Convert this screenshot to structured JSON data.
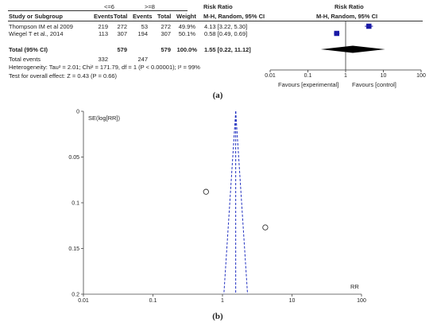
{
  "forest": {
    "group1_label": "<=6",
    "group2_label": ">=8",
    "rr_header_left": "Risk Ratio",
    "rr_header_right": "Risk Ratio",
    "columns": {
      "study": "Study or Subgroup",
      "events1": "Events",
      "total1": "Total",
      "events2": "Events",
      "total2": "Total",
      "weight": "Weight",
      "method_left": "M-H, Random, 95% CI",
      "method_right": "M-H, Random, 95% CI"
    },
    "studies": [
      {
        "name": "Thompson IM et al 2009",
        "events1": "219",
        "total1": "272",
        "events2": "53",
        "total2": "272",
        "weight": "49.9%",
        "ci_text": "4.13 [3.22, 5.30]"
      },
      {
        "name": "Wiegel T et al., 2014",
        "events1": "113",
        "total1": "307",
        "events2": "194",
        "total2": "307",
        "weight": "50.1%",
        "ci_text": "0.58 [0.49, 0.69]"
      }
    ],
    "total_label": "Total (95% CI)",
    "total_n1": "579",
    "total_n2": "579",
    "total_weight": "100.0%",
    "total_ci_text": "1.55 [0.22, 11.12]",
    "total_events_label": "Total events",
    "total_events1": "332",
    "total_events2": "247",
    "heterogeneity": "Heterogeneity: Tau² = 2.01; Chi² = 171.79, df = 1 (P < 0.00001); I² = 99%",
    "overall_effect": "Test for overall effect: Z = 0.43 (P = 0.66)",
    "favours_left": "Favours [experimental]",
    "favours_right": "Favours [control]",
    "caption": "(a)"
  },
  "funnel": {
    "ylabel": "SE(log[RR])",
    "xlabel": "RR",
    "caption": "(b)"
  },
  "chart_data": [
    {
      "type": "forest",
      "scale": "log",
      "xlim": [
        0.01,
        100
      ],
      "x_ticks": [
        "0.01",
        "0.1",
        "1",
        "10",
        "100"
      ],
      "series": [
        {
          "name": "Thompson IM et al 2009",
          "rr": 4.13,
          "ci": [
            3.22,
            5.3
          ],
          "weight": 49.9
        },
        {
          "name": "Wiegel T et al., 2014",
          "rr": 0.58,
          "ci": [
            0.49,
            0.69
          ],
          "weight": 50.1
        }
      ],
      "pooled": {
        "rr": 1.55,
        "ci": [
          0.22,
          11.12
        ]
      },
      "xlabel": "",
      "legend": [
        "Favours [experimental]",
        "Favours [control]"
      ]
    },
    {
      "type": "scatter",
      "scale_x": "log",
      "xlim": [
        0.01,
        100
      ],
      "ylim": [
        0,
        0.2
      ],
      "y_inverted": true,
      "x_ticks": [
        "0.01",
        "0.1",
        "1",
        "10",
        "100"
      ],
      "y_ticks": [
        "0",
        "0.05",
        "0.1",
        "0.15",
        "0.2"
      ],
      "xlabel": "RR",
      "ylabel": "SE(log[RR])",
      "points": [
        {
          "x": 0.58,
          "y": 0.088
        },
        {
          "x": 4.13,
          "y": 0.127
        }
      ],
      "pooled_rr": 1.55,
      "funnel_lines": "dashed"
    }
  ]
}
